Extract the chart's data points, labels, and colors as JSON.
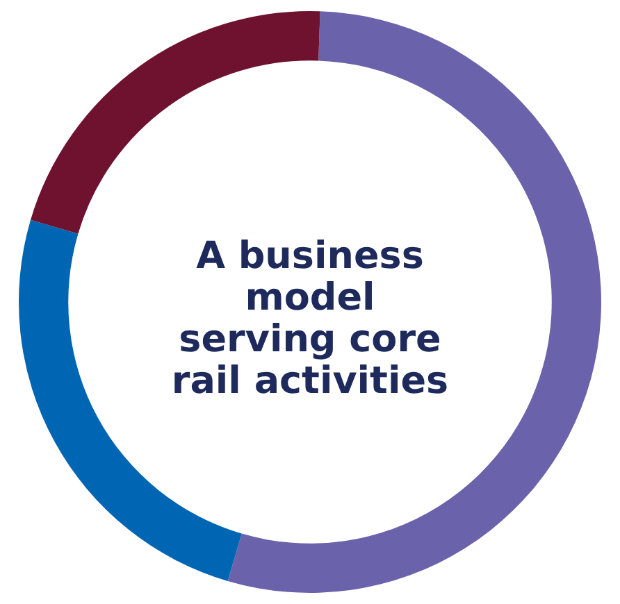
{
  "chart_data": {
    "type": "donut",
    "title": "A business model serving core rail activities",
    "categories": [
      null,
      null,
      null
    ],
    "values": [
      54,
      25,
      21
    ],
    "colors": [
      "#6a62ab",
      "#0066b3",
      "#6e1230"
    ]
  }
}
